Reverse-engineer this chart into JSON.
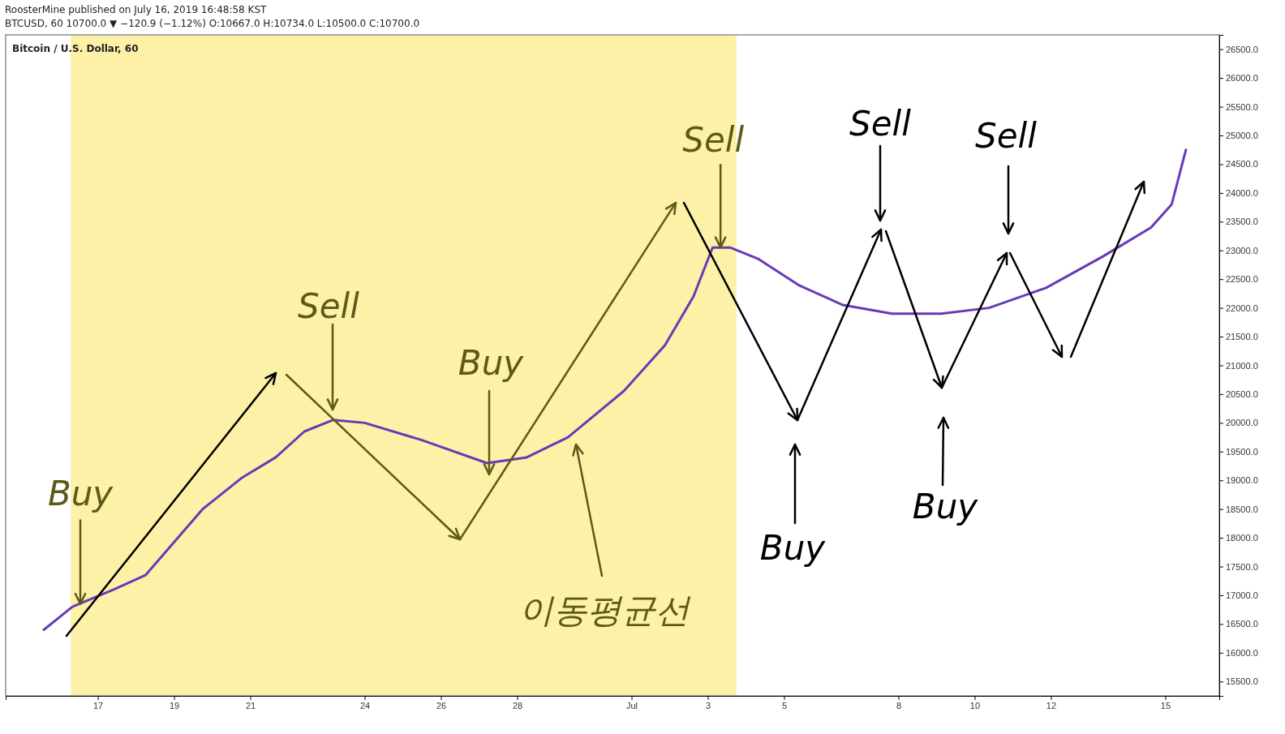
{
  "chart_data": {
    "type": "line",
    "title": "Bitcoin / U.S. Dollar, 60",
    "annotations": [
      "RoosterMine published on July 16, 2019 16:48:58 KST",
      "BTCUSD, 60  10700.0 ▼ −120.9 (−1.12%) O:10667.0 H:10734.0 L:10500.0 C:10700.0",
      {
        "text": "Buy",
        "x": "2019-06-16T13:00",
        "y": 16850
      },
      "Sell",
      "Buy",
      "이동평균선",
      {
        "text": "Sell",
        "x": "2019-07-03T08:00",
        "y": 23050
      },
      "Buy",
      "Sell",
      "Buy",
      "Sell"
    ],
    "series": [
      {
        "color": "#673ab7",
        "x": [
          "2019-06-15T14:00",
          "2019-06-16T08:00",
          "2019-06-17T10:00",
          "2019-06-18T06:00",
          "2019-06-19T18:00",
          "2019-06-20T19:00",
          "2019-06-21T16:00",
          "2019-06-22T10:00",
          "2019-06-23T04:00",
          "2019-06-24T00:00",
          "2019-06-25T12:00",
          "2019-06-27T05:00",
          "2019-06-28T06:00",
          "2019-06-29T08:00",
          "2019-06-30T19:00",
          "2019-07-01T21:00",
          "2019-07-02T15:00",
          "2019-07-03T03:00",
          "2019-07-03T14:00",
          "2019-07-04T08:00",
          "2019-07-05T09:00",
          "2019-07-06T13:00",
          "2019-07-07T20:00",
          "2019-07-09T03:00",
          "2019-07-10T09:00",
          "2019-07-11T21:00",
          "2019-07-13T09:00",
          "2019-07-14T15:00",
          "2019-07-15T04:00",
          "2019-07-15T13:00"
        ],
        "values": [
          16400,
          16800,
          17100,
          17350,
          18500,
          19050,
          19400,
          19850,
          20050,
          20000,
          19700,
          19300,
          19400,
          19750,
          20550,
          21350,
          22200,
          23050,
          23050,
          22850,
          22400,
          22050,
          21900,
          21900,
          22000,
          22350,
          22900,
          23400,
          23800,
          24750
        ]
      }
    ],
    "bands": [
      {
        "axis": "x",
        "from": "2019-06-16T07:00",
        "to": "2019-07-03T18:00",
        "color": "#f5d800"
      }
    ],
    "xlim": [
      "2019-06-14T14:00",
      "2019-07-16T10:00"
    ],
    "xticks": [
      {
        "value": "2019-06-17",
        "label": "17"
      },
      {
        "value": "2019-06-19",
        "label": "19"
      },
      {
        "value": "2019-06-21",
        "label": "21"
      },
      {
        "value": "2019-06-24",
        "label": "24"
      },
      {
        "value": "2019-06-26",
        "label": "26"
      },
      {
        "value": "2019-06-28",
        "label": "28"
      },
      {
        "value": "2019-07-01",
        "label": "Jul"
      },
      {
        "value": "2019-07-03",
        "label": "3"
      },
      {
        "value": "2019-07-05",
        "label": "5"
      },
      {
        "value": "2019-07-08",
        "label": "8"
      },
      {
        "value": "2019-07-10",
        "label": "10"
      },
      {
        "value": "2019-07-12",
        "label": "12"
      },
      {
        "value": "2019-07-15",
        "label": "15"
      }
    ],
    "ylim": [
      15250,
      26750
    ],
    "yticks": [
      {
        "value": 15500,
        "label": "15500.0"
      },
      {
        "value": 16000,
        "label": "16000.0"
      },
      {
        "value": 16500,
        "label": "16500.0"
      },
      {
        "value": 17000,
        "label": "17000.0"
      },
      {
        "value": 17500,
        "label": "17500.0"
      },
      {
        "value": 18000,
        "label": "18000.0"
      },
      {
        "value": 18500,
        "label": "18500.0"
      },
      {
        "value": 19000,
        "label": "19000.0"
      },
      {
        "value": 19500,
        "label": "19500.0"
      },
      {
        "value": 20000,
        "label": "20000.0"
      },
      {
        "value": 20500,
        "label": "20500.0"
      },
      {
        "value": 21000,
        "label": "21000.0"
      },
      {
        "value": 21500,
        "label": "21500.0"
      },
      {
        "value": 22000,
        "label": "22000.0"
      },
      {
        "value": 22500,
        "label": "22500.0"
      },
      {
        "value": 23000,
        "label": "23000.0"
      },
      {
        "value": 23500,
        "label": "23500.0"
      },
      {
        "value": 24000,
        "label": "24000.0"
      },
      {
        "value": 24500,
        "label": "24500.0"
      },
      {
        "value": 25000,
        "label": "25000.0"
      },
      {
        "value": 25500,
        "label": "25500.0"
      },
      {
        "value": 26000,
        "label": "26000.0"
      },
      {
        "value": 26500,
        "label": "26500.0"
      }
    ],
    "grid": false,
    "marker": "none",
    "line_style": "solid"
  }
}
